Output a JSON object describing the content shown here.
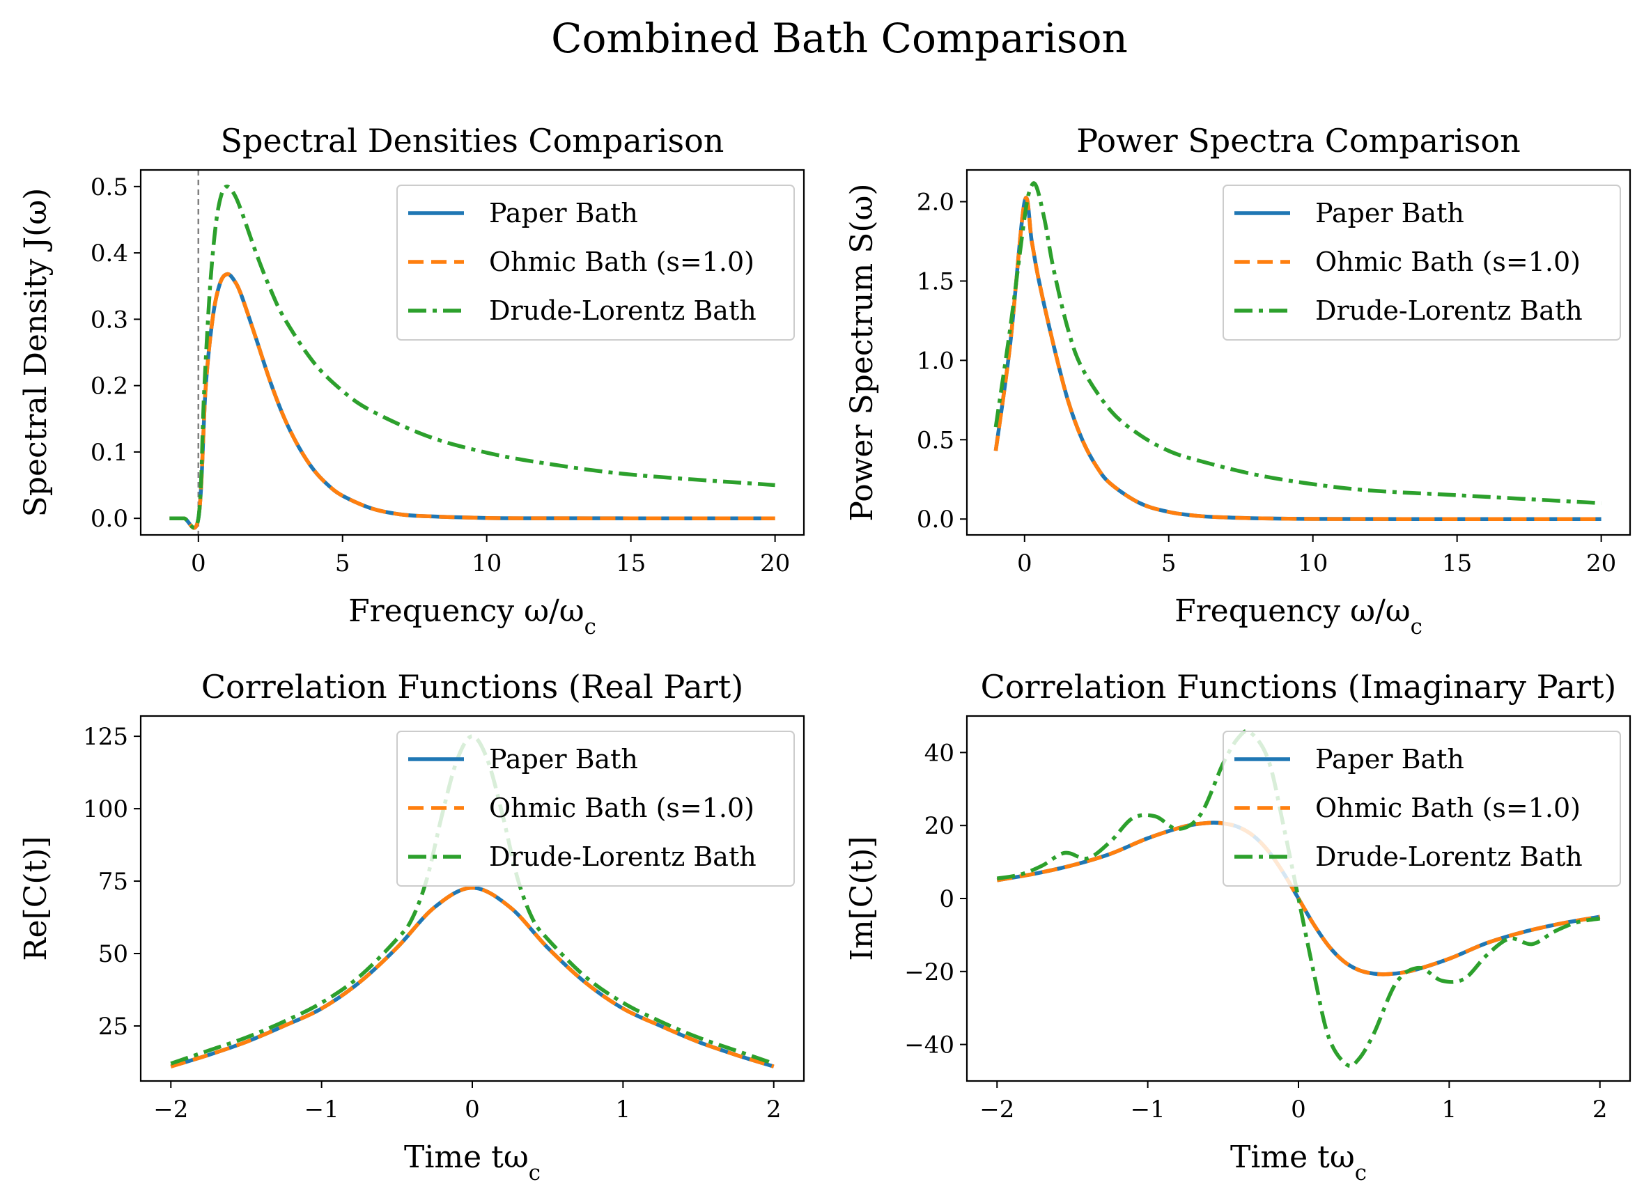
{
  "figure_title": "Combined Bath Comparison",
  "colors": {
    "paper": "#1f77b4",
    "ohmic": "#ff7f0e",
    "drude": "#2ca02c",
    "zero_line": "#808080"
  },
  "legend": [
    "Paper Bath",
    "Ohmic Bath (s=1.0)",
    "Drude-Lorentz Bath"
  ],
  "chart_data": [
    {
      "type": "line",
      "title": "Spectral Densities Comparison",
      "xlabel": "Frequency ω/ω_c",
      "ylabel": "Spectral Density J(ω)",
      "xlim": [
        -2,
        21
      ],
      "ylim": [
        -0.025,
        0.525
      ],
      "xticks": [
        0,
        5,
        10,
        15,
        20
      ],
      "yticks": [
        0.0,
        0.1,
        0.2,
        0.3,
        0.4,
        0.5
      ],
      "ytick_labels": [
        "0.0",
        "0.1",
        "0.2",
        "0.3",
        "0.4",
        "0.5"
      ],
      "vline_x": 0,
      "legend": "upper right",
      "series": [
        {
          "name": "Paper Bath",
          "x": [
            -1,
            -0.5,
            0,
            0.25,
            0.5,
            0.75,
            1,
            1.25,
            1.5,
            2,
            2.5,
            3,
            3.5,
            4,
            4.5,
            5,
            6,
            7,
            8,
            10,
            12,
            15,
            20
          ],
          "y": [
            0,
            0,
            0,
            0.195,
            0.303,
            0.354,
            0.368,
            0.358,
            0.335,
            0.271,
            0.205,
            0.149,
            0.106,
            0.073,
            0.05,
            0.034,
            0.015,
            0.006,
            0.003,
            0.0005,
            0.0001,
            0,
            0
          ]
        },
        {
          "name": "Ohmic Bath (s=1.0)",
          "x": [
            -1,
            -0.5,
            0,
            0.25,
            0.5,
            0.75,
            1,
            1.25,
            1.5,
            2,
            2.5,
            3,
            3.5,
            4,
            4.5,
            5,
            6,
            7,
            8,
            10,
            12,
            15,
            20
          ],
          "y": [
            0,
            0,
            0,
            0.195,
            0.303,
            0.354,
            0.368,
            0.358,
            0.335,
            0.271,
            0.205,
            0.149,
            0.106,
            0.073,
            0.05,
            0.034,
            0.015,
            0.006,
            0.003,
            0.0005,
            0.0001,
            0,
            0
          ]
        },
        {
          "name": "Drude-Lorentz Bath",
          "x": [
            -1,
            -0.5,
            0,
            0.2,
            0.4,
            0.6,
            0.8,
            1,
            1.25,
            1.5,
            2,
            2.5,
            3,
            4,
            5,
            6,
            8,
            10,
            12,
            15,
            20
          ],
          "y": [
            0,
            0,
            0,
            0.192,
            0.345,
            0.441,
            0.488,
            0.5,
            0.488,
            0.462,
            0.4,
            0.345,
            0.3,
            0.235,
            0.192,
            0.162,
            0.123,
            0.099,
            0.083,
            0.066,
            0.05
          ]
        }
      ]
    },
    {
      "type": "line",
      "title": "Power Spectra Comparison",
      "xlabel": "Frequency ω/ω_c",
      "ylabel": "Power Spectrum S(ω)",
      "xlim": [
        -2,
        21
      ],
      "ylim": [
        -0.1,
        2.2
      ],
      "xticks": [
        0,
        5,
        10,
        15,
        20
      ],
      "yticks": [
        0.0,
        0.5,
        1.0,
        1.5,
        2.0
      ],
      "ytick_labels": [
        "0.0",
        "0.5",
        "1.0",
        "1.5",
        "2.0"
      ],
      "legend": "upper right",
      "series": [
        {
          "name": "Paper Bath",
          "x": [
            -1,
            -0.5,
            0,
            0.25,
            0.5,
            1,
            1.5,
            2,
            2.5,
            3,
            4,
            5,
            6,
            7,
            8,
            10,
            15,
            20
          ],
          "y": [
            0.43,
            1.1,
            2.0,
            1.75,
            1.5,
            1.1,
            0.75,
            0.5,
            0.33,
            0.22,
            0.1,
            0.045,
            0.02,
            0.01,
            0.005,
            0.001,
            0,
            0
          ]
        },
        {
          "name": "Ohmic Bath (s=1.0)",
          "x": [
            -1,
            -0.5,
            0,
            0.25,
            0.5,
            1,
            1.5,
            2,
            2.5,
            3,
            4,
            5,
            6,
            7,
            8,
            10,
            15,
            20
          ],
          "y": [
            0.43,
            1.1,
            2.0,
            1.75,
            1.5,
            1.1,
            0.75,
            0.5,
            0.33,
            0.22,
            0.1,
            0.045,
            0.02,
            0.01,
            0.005,
            0.001,
            0,
            0
          ]
        },
        {
          "name": "Drude-Lorentz Bath",
          "x": [
            -1,
            -0.5,
            0,
            0.2,
            0.4,
            0.7,
            1,
            1.5,
            2,
            3,
            4,
            5,
            6,
            8,
            10,
            12,
            15,
            20
          ],
          "y": [
            0.58,
            1.2,
            1.9,
            2.08,
            2.1,
            1.88,
            1.58,
            1.2,
            0.95,
            0.68,
            0.53,
            0.43,
            0.37,
            0.28,
            0.22,
            0.18,
            0.15,
            0.1
          ]
        }
      ]
    },
    {
      "type": "line",
      "title": "Correlation Functions (Real Part)",
      "xlabel": "Time tω_c",
      "ylabel": "Re[C(t)]",
      "xlim": [
        -2.2,
        2.2
      ],
      "ylim": [
        6,
        132
      ],
      "xticks": [
        -2,
        -1,
        0,
        1,
        2
      ],
      "xtick_labels": [
        "−2",
        "−1",
        "0",
        "1",
        "2"
      ],
      "yticks": [
        25,
        50,
        75,
        100,
        125
      ],
      "ytick_labels": [
        "25",
        "50",
        "75",
        "100",
        "125"
      ],
      "legend": "upper right",
      "series": [
        {
          "name": "Paper Bath",
          "x": [
            -2,
            -1.75,
            -1.5,
            -1.25,
            -1,
            -0.75,
            -0.5,
            -0.25,
            0,
            0.25,
            0.5,
            0.75,
            1,
            1.25,
            1.5,
            1.75,
            2
          ],
          "y": [
            11,
            15,
            19.5,
            25,
            31,
            40,
            52,
            66,
            72.7,
            66,
            52,
            40,
            31,
            25,
            19.5,
            15,
            11
          ]
        },
        {
          "name": "Ohmic Bath (s=1.0)",
          "x": [
            -2,
            -1.75,
            -1.5,
            -1.25,
            -1,
            -0.75,
            -0.5,
            -0.25,
            0,
            0.25,
            0.5,
            0.75,
            1,
            1.25,
            1.5,
            1.75,
            2
          ],
          "y": [
            11,
            15,
            19.5,
            25,
            31,
            40,
            52,
            66,
            72.7,
            66,
            52,
            40,
            31,
            25,
            19.5,
            15,
            11
          ]
        },
        {
          "name": "Drude-Lorentz Bath",
          "x": [
            -2,
            -1.75,
            -1.5,
            -1.25,
            -1,
            -0.75,
            -0.5,
            -0.4,
            -0.3,
            -0.2,
            -0.1,
            0,
            0.1,
            0.2,
            0.3,
            0.4,
            0.5,
            0.75,
            1,
            1.25,
            1.5,
            1.75,
            2
          ],
          "y": [
            12,
            16.5,
            21,
            26.5,
            33,
            42,
            55,
            62,
            76,
            98,
            117,
            125,
            117,
            98,
            76,
            62,
            55,
            42,
            33,
            26.5,
            21,
            16.5,
            12
          ]
        }
      ]
    },
    {
      "type": "line",
      "title": "Correlation Functions (Imaginary Part)",
      "xlabel": "Time tω_c",
      "ylabel": "Im[C(t)]",
      "xlim": [
        -2.2,
        2.2
      ],
      "ylim": [
        -50,
        50
      ],
      "xticks": [
        -2,
        -1,
        0,
        1,
        2
      ],
      "xtick_labels": [
        "−2",
        "−1",
        "0",
        "1",
        "2"
      ],
      "yticks": [
        -40,
        -20,
        0,
        20,
        40
      ],
      "ytick_labels": [
        "−40",
        "−20",
        "0",
        "20",
        "40"
      ],
      "legend": "upper right",
      "series": [
        {
          "name": "Paper Bath",
          "x": [
            -2,
            -1.75,
            -1.5,
            -1.25,
            -1,
            -0.75,
            -0.6,
            -0.5,
            -0.4,
            -0.3,
            -0.2,
            -0.1,
            0,
            0.1,
            0.2,
            0.3,
            0.4,
            0.5,
            0.6,
            0.75,
            1,
            1.25,
            1.5,
            1.75,
            2
          ],
          "y": [
            5,
            6.8,
            9.1,
            12.2,
            16.5,
            19.8,
            20.7,
            20.6,
            19.6,
            17.2,
            13,
            7,
            0,
            -7,
            -13,
            -17.2,
            -19.6,
            -20.6,
            -20.7,
            -19.8,
            -16.5,
            -12.2,
            -9.1,
            -6.8,
            -5
          ]
        },
        {
          "name": "Ohmic Bath (s=1.0)",
          "x": [
            -2,
            -1.75,
            -1.5,
            -1.25,
            -1,
            -0.75,
            -0.6,
            -0.5,
            -0.4,
            -0.3,
            -0.2,
            -0.1,
            0,
            0.1,
            0.2,
            0.3,
            0.4,
            0.5,
            0.6,
            0.75,
            1,
            1.25,
            1.5,
            1.75,
            2
          ],
          "y": [
            5,
            6.8,
            9.1,
            12.2,
            16.5,
            19.8,
            20.7,
            20.6,
            19.6,
            17.2,
            13,
            7,
            0,
            -7,
            -13,
            -17.2,
            -19.6,
            -20.6,
            -20.7,
            -19.8,
            -16.5,
            -12.2,
            -9.1,
            -6.8,
            -5
          ]
        },
        {
          "name": "Drude-Lorentz Bath",
          "x": [
            -2,
            -1.85,
            -1.7,
            -1.55,
            -1.4,
            -1.25,
            -1.1,
            -0.95,
            -0.8,
            -0.65,
            -0.5,
            -0.4,
            -0.32,
            -0.2,
            -0.1,
            0,
            0.1,
            0.2,
            0.32,
            0.4,
            0.5,
            0.65,
            0.8,
            0.95,
            1.1,
            1.25,
            1.4,
            1.55,
            1.7,
            1.85,
            2
          ],
          "y": [
            5.5,
            6.5,
            9,
            12.5,
            11,
            15.5,
            22,
            22.5,
            19,
            23,
            37,
            44,
            45.5,
            38,
            20,
            0,
            -20,
            -38,
            -45.5,
            -44,
            -37,
            -23,
            -19,
            -22.5,
            -22,
            -15.5,
            -11,
            -12.5,
            -9,
            -6.5,
            -5.5
          ]
        }
      ]
    }
  ]
}
